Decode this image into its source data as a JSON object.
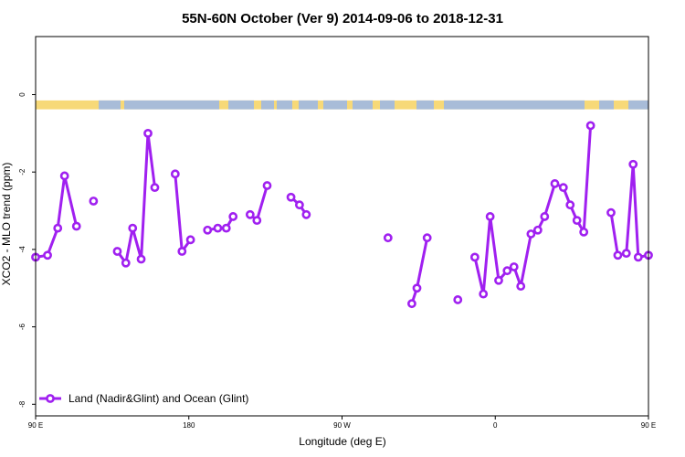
{
  "chart_data": {
    "type": "line",
    "title": "55N-60N October (Ver 9)   2014-09-06 to 2018-12-31",
    "xlabel": "Longitude (deg E)",
    "ylabel": "XCO2 - MLO trend (ppm)",
    "xlim": [
      90,
      450
    ],
    "ylim": [
      -8.3,
      1.5
    ],
    "x_ticks": [
      {
        "value": 90,
        "label": "90 E"
      },
      {
        "value": 180,
        "label": "180"
      },
      {
        "value": 270,
        "label": "90 W"
      },
      {
        "value": 360,
        "label": "0"
      },
      {
        "value": 450,
        "label": "90 E"
      },
      {
        "value": 540,
        "label": "180"
      }
    ],
    "y_ticks": [
      0,
      -2,
      -4,
      -6,
      -8
    ],
    "grid": false,
    "legend_position": "bottom-left",
    "land_band": {
      "y_top": -0.15,
      "y_bottom": -0.38,
      "land_color": "#F7D978",
      "ocean_color": "#A8BCD8"
    },
    "series": [
      {
        "name": "Land (Nadir&Glint) and Ocean (Glint)",
        "color": "#A020F0",
        "segments": [
          [
            [
              90,
              -4.2
            ],
            [
              97,
              -4.15
            ],
            [
              103,
              -3.45
            ],
            [
              107,
              -2.1
            ],
            [
              114,
              -3.4
            ]
          ],
          [
            [
              124,
              -2.75
            ]
          ],
          [
            [
              138,
              -4.05
            ],
            [
              143,
              -4.35
            ],
            [
              147,
              -3.45
            ],
            [
              152,
              -4.25
            ],
            [
              156,
              -1.0
            ],
            [
              160,
              -2.4
            ]
          ],
          [
            [
              172,
              -2.05
            ],
            [
              176,
              -4.05
            ],
            [
              181,
              -3.75
            ]
          ],
          [
            [
              191,
              -3.5
            ],
            [
              197,
              -3.45
            ],
            [
              202,
              -3.45
            ],
            [
              206,
              -3.15
            ]
          ],
          [
            [
              216,
              -3.1
            ],
            [
              220,
              -3.25
            ],
            [
              226,
              -2.35
            ]
          ],
          [
            [
              240,
              -2.65
            ],
            [
              245,
              -2.85
            ],
            [
              249,
              -3.1
            ]
          ],
          [
            [
              297,
              -3.7
            ]
          ],
          [
            [
              311,
              -5.4
            ],
            [
              314,
              -5.0
            ],
            [
              320,
              -3.7
            ]
          ],
          [
            [
              338,
              -5.3
            ]
          ],
          [
            [
              348,
              -4.2
            ],
            [
              353,
              -5.15
            ],
            [
              357,
              -3.15
            ],
            [
              362,
              -4.8
            ],
            [
              367,
              -4.55
            ],
            [
              371,
              -4.45
            ],
            [
              375,
              -4.95
            ],
            [
              381,
              -3.6
            ],
            [
              385,
              -3.5
            ],
            [
              389,
              -3.15
            ],
            [
              395,
              -2.3
            ],
            [
              400,
              -2.4
            ],
            [
              404,
              -2.85
            ],
            [
              408,
              -3.25
            ],
            [
              412,
              -3.55
            ],
            [
              416,
              -0.8
            ]
          ],
          [
            [
              428,
              -3.05
            ],
            [
              432,
              -4.15
            ],
            [
              437,
              -4.1
            ],
            [
              441,
              -1.8
            ],
            [
              444,
              -4.2
            ],
            [
              450,
              -4.15
            ]
          ]
        ]
      }
    ]
  }
}
